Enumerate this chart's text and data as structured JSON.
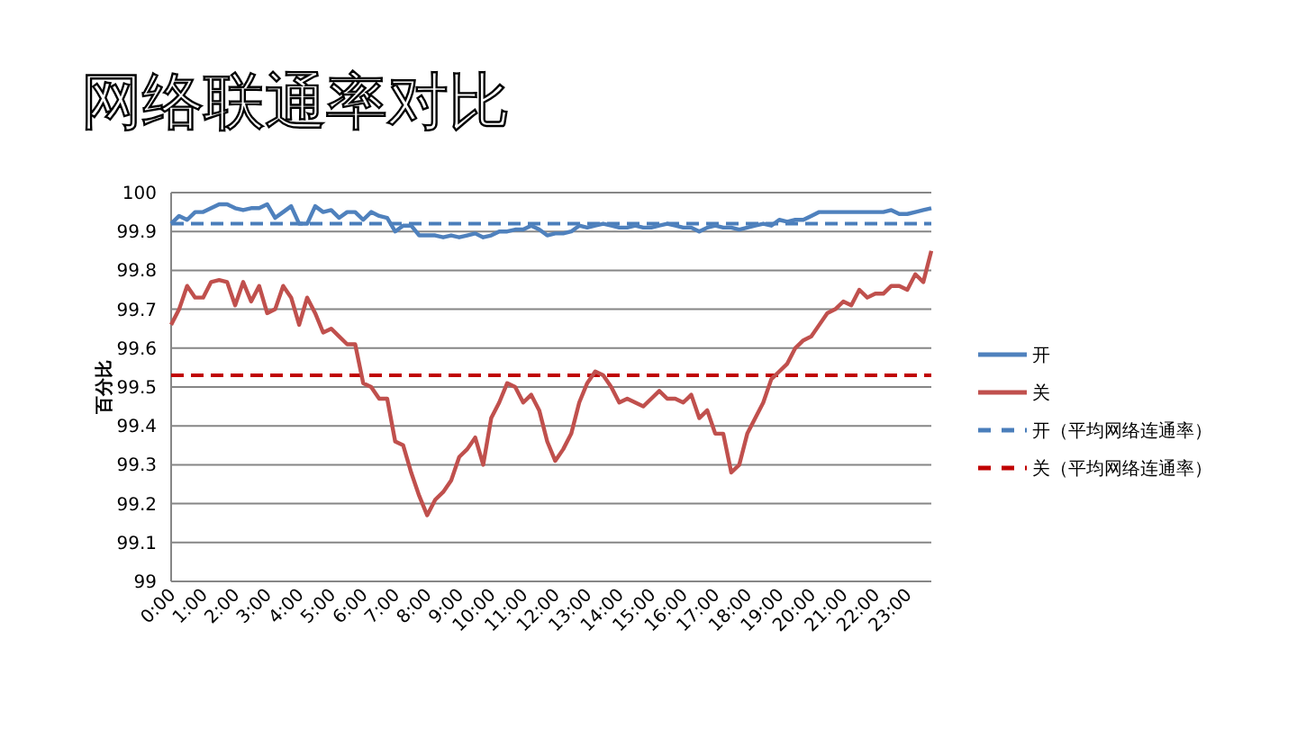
{
  "chart_data": {
    "type": "line",
    "title": "网络联通率对比",
    "ylabel": "百分比",
    "categories": [
      "0:00",
      null,
      null,
      null,
      "1:00",
      null,
      null,
      null,
      "2:00",
      null,
      null,
      null,
      "3:00",
      null,
      null,
      null,
      "4:00",
      null,
      null,
      null,
      "5:00",
      null,
      null,
      null,
      "6:00",
      null,
      null,
      null,
      "7:00",
      null,
      null,
      null,
      "8:00",
      null,
      null,
      null,
      "9:00",
      null,
      null,
      null,
      "10:00",
      null,
      null,
      null,
      "11:00",
      null,
      null,
      null,
      "12:00",
      null,
      null,
      null,
      "13:00",
      null,
      null,
      null,
      "14:00",
      null,
      null,
      null,
      "15:00",
      null,
      null,
      null,
      "16:00",
      null,
      null,
      null,
      "17:00",
      null,
      null,
      null,
      "18:00",
      null,
      null,
      null,
      "19:00",
      null,
      null,
      null,
      "20:00",
      null,
      null,
      null,
      "21:00",
      null,
      null,
      null,
      "22:00",
      null,
      null,
      null,
      "23:00",
      null,
      null,
      null
    ],
    "series": [
      {
        "name": "开",
        "color": "#4f81bd",
        "values": [
          99.92,
          99.94,
          99.93,
          99.95,
          99.95,
          99.96,
          99.97,
          99.97,
          99.96,
          99.955,
          99.96,
          99.96,
          99.97,
          99.935,
          99.95,
          99.965,
          99.92,
          99.92,
          99.965,
          99.95,
          99.955,
          99.935,
          99.95,
          99.95,
          99.93,
          99.95,
          99.94,
          99.935,
          99.9,
          99.915,
          99.915,
          99.89,
          99.89,
          99.89,
          99.885,
          99.89,
          99.885,
          99.89,
          99.895,
          99.885,
          99.89,
          99.9,
          99.9,
          99.905,
          99.905,
          99.915,
          99.905,
          99.89,
          99.895,
          99.895,
          99.9,
          99.915,
          99.91,
          99.915,
          99.92,
          99.915,
          99.91,
          99.91,
          99.915,
          99.91,
          99.91,
          99.915,
          99.92,
          99.915,
          99.91,
          99.91,
          99.9,
          99.91,
          99.915,
          99.91,
          99.91,
          99.905,
          99.91,
          99.915,
          99.92,
          99.915,
          99.93,
          99.925,
          99.93,
          99.93,
          99.94,
          99.95,
          99.95,
          99.95,
          99.95,
          99.95,
          99.95,
          99.95,
          99.95,
          99.95,
          99.955,
          99.945,
          99.945,
          99.95,
          99.955,
          99.96
        ]
      },
      {
        "name": "关",
        "color": "#c0504d",
        "values": [
          99.66,
          99.7,
          99.76,
          99.73,
          99.73,
          99.77,
          99.775,
          99.77,
          99.71,
          99.77,
          99.72,
          99.76,
          99.69,
          99.7,
          99.76,
          99.73,
          99.66,
          99.73,
          99.69,
          99.64,
          99.65,
          99.63,
          99.61,
          99.61,
          99.51,
          99.5,
          99.47,
          99.47,
          99.36,
          99.35,
          99.28,
          99.22,
          99.17,
          99.21,
          99.23,
          99.26,
          99.32,
          99.34,
          99.37,
          99.3,
          99.42,
          99.46,
          99.51,
          99.5,
          99.46,
          99.48,
          99.44,
          99.36,
          99.31,
          99.34,
          99.38,
          99.46,
          99.51,
          99.54,
          99.53,
          99.5,
          99.46,
          99.47,
          99.46,
          99.45,
          99.47,
          99.49,
          99.47,
          99.47,
          99.46,
          99.48,
          99.42,
          99.44,
          99.38,
          99.38,
          99.28,
          99.3,
          99.38,
          99.42,
          99.46,
          99.52,
          99.54,
          99.56,
          99.6,
          99.62,
          99.63,
          99.66,
          99.69,
          99.7,
          99.72,
          99.71,
          99.75,
          99.73,
          99.74,
          99.74,
          99.76,
          99.76,
          99.75,
          99.79,
          99.77,
          99.85
        ]
      }
    ],
    "ref_lines": [
      {
        "axis": "y",
        "value": 99.92,
        "label": "开（平均网络连通率）",
        "color": "#4a7ebb",
        "line_style": "dashed"
      },
      {
        "axis": "y",
        "value": 99.53,
        "label": "关（平均网络连通率）",
        "color": "#c00000",
        "line_style": "dashed"
      }
    ],
    "ylim": [
      99,
      100
    ],
    "yticks": [
      99,
      99.1,
      99.2,
      99.3,
      99.4,
      99.5,
      99.6,
      99.7,
      99.8,
      99.9,
      100
    ],
    "grid": "y",
    "legend": "right",
    "marker": "none",
    "line_style": "solid"
  }
}
